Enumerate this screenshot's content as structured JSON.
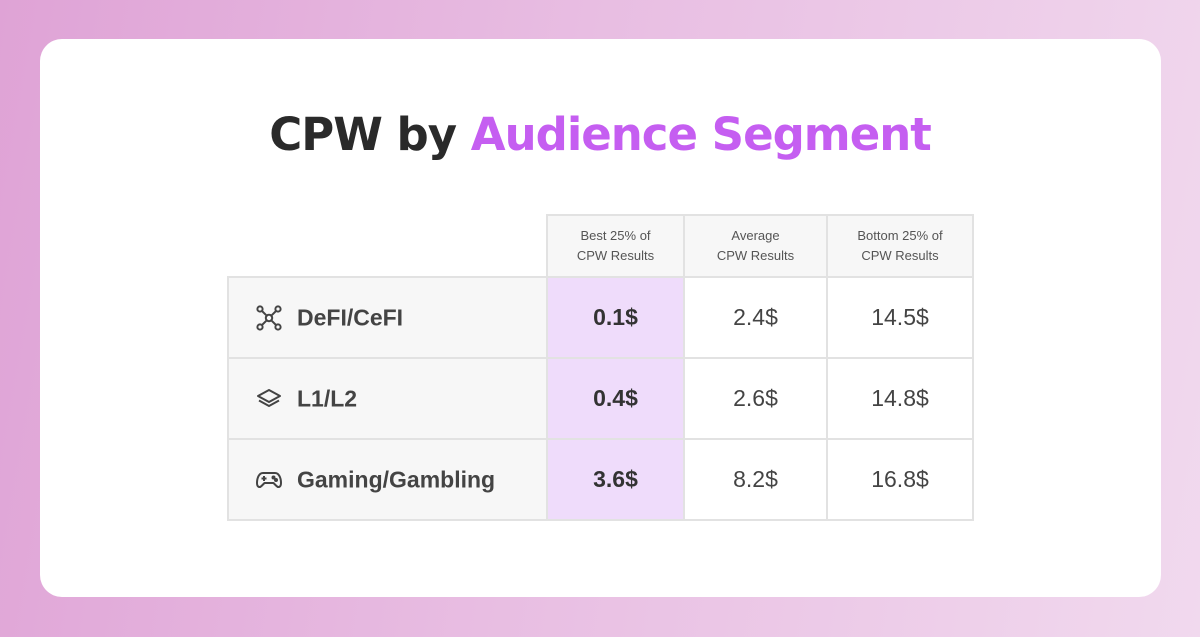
{
  "title": {
    "part1": "CPW by",
    "part2": "Audience Segment"
  },
  "colors": {
    "accent": "#c55ef1",
    "best_column_bg": "#efdcfb"
  },
  "chart_data": {
    "type": "table",
    "title": "CPW by Audience Segment",
    "columns": [
      {
        "line1": "Best 25% of",
        "line2": "CPW Results"
      },
      {
        "line1": "Average",
        "line2": "CPW Results"
      },
      {
        "line1": "Bottom 25% of",
        "line2": "CPW Results"
      }
    ],
    "rows": [
      {
        "icon": "network-icon",
        "label": "DeFI/CeFI",
        "values": [
          "0.1$",
          "2.4$",
          "14.5$"
        ]
      },
      {
        "icon": "layers-icon",
        "label": "L1/L2",
        "values": [
          "0.4$",
          "2.6$",
          "14.8$"
        ]
      },
      {
        "icon": "gamepad-icon",
        "label": "Gaming/Gambling",
        "values": [
          "3.6$",
          "8.2$",
          "16.8$"
        ]
      }
    ]
  }
}
